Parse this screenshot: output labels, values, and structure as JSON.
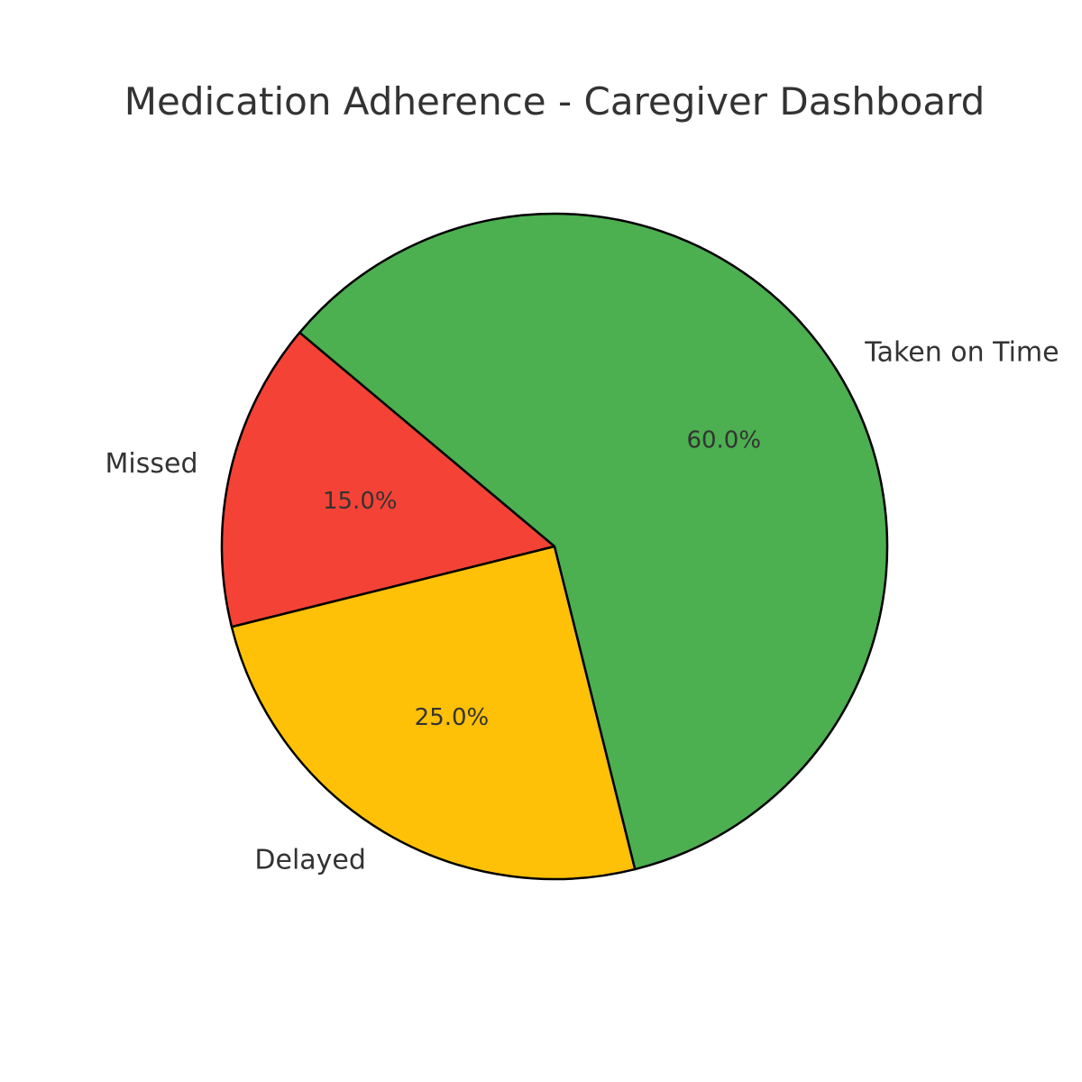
{
  "chart_data": {
    "type": "pie",
    "title": "Medication Adherence - Caregiver Dashboard",
    "categories": [
      "Missed",
      "Delayed",
      "Taken on Time"
    ],
    "values": [
      15,
      25,
      60
    ],
    "value_labels": [
      "15.0%",
      "25.0%",
      "60.0%"
    ],
    "colors": [
      "#f44336",
      "#ffc107",
      "#4caf50"
    ],
    "edge_color": "#000000"
  }
}
